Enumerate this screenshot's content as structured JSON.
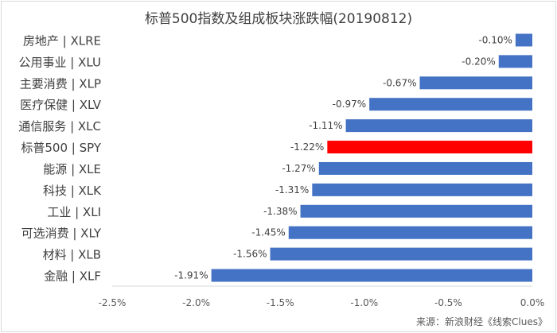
{
  "chart_data": {
    "type": "bar",
    "orientation": "horizontal",
    "title": "标普500指数及组成板块涨跌幅(20190812)",
    "categories": [
      "房地产 | XLRE",
      "公用事业 | XLU",
      "主要消费 | XLP",
      "医疗保健 | XLV",
      "通信服务 | XLC",
      "标普500 | SPY",
      "能源 | XLE",
      "科技 | XLK",
      "工业 | XLI",
      "可选消费 | XLY",
      "材料 | XLB",
      "金融 | XLF"
    ],
    "values": [
      -0.1,
      -0.2,
      -0.67,
      -0.97,
      -1.11,
      -1.22,
      -1.27,
      -1.31,
      -1.38,
      -1.45,
      -1.56,
      -1.91
    ],
    "data_labels": [
      "-0.10%",
      "-0.20%",
      "-0.67%",
      "-0.97%",
      "-1.11%",
      "-1.22%",
      "-1.27%",
      "-1.31%",
      "-1.38%",
      "-1.45%",
      "-1.56%",
      "-1.91%"
    ],
    "xlim": [
      -2.5,
      0.0
    ],
    "x_ticks": [
      -2.5,
      -2.0,
      -1.5,
      -1.0,
      -0.5,
      0.0
    ],
    "x_tick_labels": [
      "-2.5%",
      "-2.0%",
      "-1.5%",
      "-1.0%",
      "-0.5%",
      "0.0%"
    ],
    "grid": false,
    "colors": {
      "bar": "#4472c4",
      "highlight": "#ff0000",
      "highlight_category": "标普500 | SPY"
    }
  },
  "source_note": "来源：新浪财经《线索Clues》"
}
